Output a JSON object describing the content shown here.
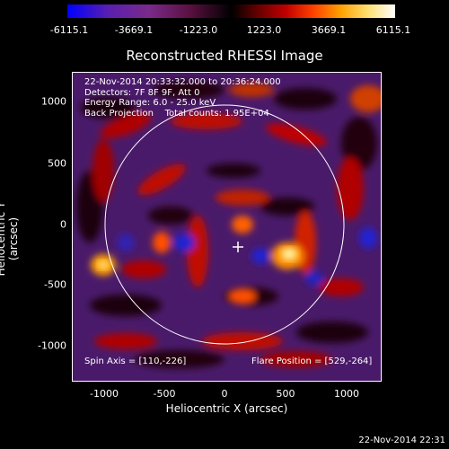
{
  "colorbar": {
    "ticks": [
      "-6115.1",
      "-3669.1",
      "-1223.0",
      "1223.0",
      "3669.1",
      "6115.1"
    ]
  },
  "title": "Reconstructed RHESSI Image",
  "info": {
    "line1": "22-Nov-2014 20:33:32.000 to 20:36:24.000",
    "line2": "Detectors: 7F 8F 9F, Att 0",
    "line3": "Energy Range: 6.0 - 25.0 keV",
    "line4_a": "Back Projection",
    "line4_b": "Total counts: 1.95E+04"
  },
  "axes": {
    "xlabel": "Heliocentric X (arcsec)",
    "ylabel": "Heliocentric Y (arcsec)",
    "xticks": [
      "-1000",
      "-500",
      "0",
      "500",
      "1000"
    ],
    "yticks": [
      "1000",
      "500",
      "0",
      "-500",
      "-1000"
    ]
  },
  "footer": {
    "spin_axis": "Spin Axis = [110,-226]",
    "flare_position": "Flare Position = [529,-264]"
  },
  "timestamp": "22-Nov-2014 22:31",
  "colors": {
    "background": "#000000",
    "low": "#0000ff",
    "mid": "#4a1a6a",
    "high": "#ffffff"
  }
}
